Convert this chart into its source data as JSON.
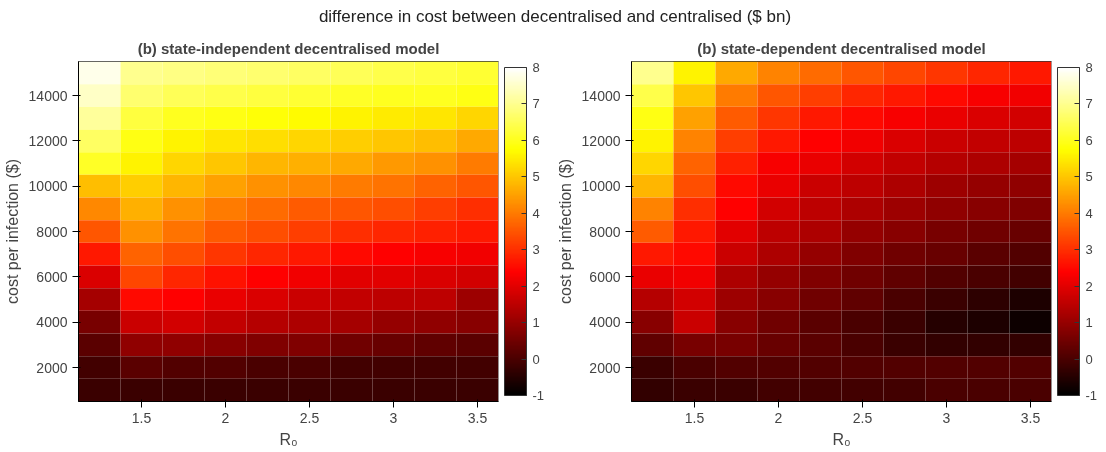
{
  "chart_data": [
    {
      "type": "heatmap",
      "title": "(b) state-independent decentralised model",
      "xlabel": "R₀",
      "ylabel": "cost per infection ($)",
      "annotations": [
        "difference in cost between decentralised and centralised ($ bn)"
      ],
      "x": [
        1.25,
        1.5,
        1.75,
        2,
        2.25,
        2.5,
        2.75,
        3,
        3.25,
        3.5
      ],
      "y": [
        15000,
        14000,
        13000,
        12000,
        11000,
        10000,
        9000,
        8000,
        7000,
        6000,
        5000,
        4000,
        3000,
        2000,
        1000
      ],
      "cells": [
        [
          7.8,
          7.0,
          6.9,
          6.8,
          6.7,
          6.6,
          6.5,
          6.4,
          6.3,
          6.2
        ],
        [
          7.5,
          6.7,
          6.5,
          6.4,
          6.3,
          6.2,
          6.1,
          6.0,
          6.0,
          5.9
        ],
        [
          7.1,
          6.3,
          6.0,
          5.9,
          5.8,
          5.7,
          5.6,
          5.5,
          5.4,
          5.2
        ],
        [
          6.6,
          5.9,
          5.6,
          5.4,
          5.3,
          5.2,
          5.1,
          5.0,
          4.9,
          4.6
        ],
        [
          6.1,
          5.6,
          5.2,
          5.0,
          4.8,
          4.7,
          4.6,
          4.4,
          4.3,
          4.0
        ],
        [
          4.9,
          5.1,
          4.8,
          4.5,
          4.3,
          4.2,
          4.0,
          3.9,
          3.7,
          3.5
        ],
        [
          4.2,
          4.7,
          4.3,
          4.0,
          3.8,
          3.6,
          3.5,
          3.4,
          3.2,
          3.0
        ],
        [
          3.5,
          4.3,
          3.9,
          3.6,
          3.4,
          3.2,
          3.0,
          2.9,
          2.8,
          2.7
        ],
        [
          2.7,
          3.7,
          3.4,
          3.1,
          2.9,
          2.7,
          2.5,
          2.4,
          2.3,
          2.2
        ],
        [
          1.9,
          3.3,
          2.9,
          2.6,
          2.4,
          2.2,
          2.0,
          2.0,
          1.9,
          1.8
        ],
        [
          1.2,
          2.5,
          2.4,
          2.1,
          1.9,
          1.7,
          1.6,
          1.5,
          1.5,
          1.1
        ],
        [
          0.6,
          1.7,
          1.8,
          1.6,
          1.4,
          1.3,
          1.2,
          1.0,
          0.9,
          0.8
        ],
        [
          0.2,
          0.9,
          0.9,
          0.8,
          0.7,
          0.7,
          0.5,
          0.4,
          0.3,
          0.2
        ],
        [
          -0.1,
          0.2,
          0.1,
          0.1,
          0.0,
          0.0,
          -0.1,
          -0.1,
          -0.1,
          -0.1
        ],
        [
          -0.2,
          -0.2,
          -0.2,
          -0.2,
          -0.2,
          -0.2,
          -0.2,
          -0.2,
          -0.2,
          -0.2
        ]
      ],
      "xlim": [
        1.125,
        3.625
      ],
      "xticks": [
        1.5,
        2,
        2.5,
        3,
        3.5
      ],
      "ylim": [
        500,
        15500
      ],
      "yticks": [
        2000,
        4000,
        6000,
        8000,
        10000,
        12000,
        14000
      ],
      "clim": [
        -1,
        8
      ],
      "cticks": [
        -1,
        0,
        1,
        2,
        3,
        4,
        5,
        6,
        7,
        8
      ]
    },
    {
      "type": "heatmap",
      "title": "(b) state-dependent decentralised model",
      "xlabel": "R₀",
      "ylabel": "cost per infection ($)",
      "x": [
        1.25,
        1.5,
        1.75,
        2,
        2.25,
        2.5,
        2.75,
        3,
        3.25,
        3.5
      ],
      "y": [
        15000,
        14000,
        13000,
        12000,
        11000,
        10000,
        9000,
        8000,
        7000,
        6000,
        5000,
        4000,
        3000,
        2000,
        1000
      ],
      "cells": [
        [
          7.0,
          5.6,
          4.6,
          4.1,
          3.8,
          3.5,
          3.3,
          3.1,
          2.9,
          2.7
        ],
        [
          6.4,
          5.0,
          4.0,
          3.5,
          3.2,
          2.9,
          2.7,
          2.5,
          2.3,
          2.2
        ],
        [
          5.9,
          4.5,
          3.6,
          3.1,
          2.7,
          2.5,
          2.3,
          2.1,
          1.9,
          1.8
        ],
        [
          5.6,
          4.1,
          3.2,
          2.7,
          2.4,
          2.2,
          1.9,
          1.7,
          1.6,
          1.5
        ],
        [
          5.2,
          3.7,
          2.8,
          2.3,
          2.1,
          1.8,
          1.6,
          1.4,
          1.3,
          1.2
        ],
        [
          4.8,
          3.4,
          2.5,
          2.1,
          1.7,
          1.5,
          1.3,
          1.1,
          1.0,
          0.9
        ],
        [
          4.1,
          3.0,
          2.4,
          1.8,
          1.5,
          1.3,
          1.1,
          0.9,
          0.8,
          0.7
        ],
        [
          3.6,
          2.7,
          2.0,
          1.5,
          1.3,
          1.0,
          0.8,
          0.6,
          0.5,
          0.4
        ],
        [
          2.7,
          2.5,
          1.7,
          1.3,
          1.0,
          0.7,
          0.5,
          0.4,
          0.2,
          0.1
        ],
        [
          2.1,
          2.2,
          1.3,
          1.0,
          0.7,
          0.5,
          0.3,
          0.1,
          0.0,
          -0.1
        ],
        [
          1.4,
          1.8,
          1.1,
          0.8,
          0.5,
          0.3,
          0.0,
          -0.2,
          -0.4,
          -0.6
        ],
        [
          0.8,
          1.7,
          0.8,
          0.5,
          0.2,
          0.0,
          -0.2,
          -0.5,
          -0.6,
          -0.8
        ],
        [
          0.3,
          0.6,
          0.6,
          0.4,
          0.2,
          0.0,
          -0.2,
          -0.3,
          -0.3,
          -0.3
        ],
        [
          -0.2,
          0.0,
          0.1,
          0.1,
          0.1,
          0.1,
          0.1,
          0.1,
          0.1,
          0.1
        ],
        [
          -0.3,
          -0.2,
          -0.2,
          -0.1,
          -0.1,
          -0.1,
          -0.1,
          0.0,
          0.0,
          0.0
        ]
      ],
      "xlim": [
        1.125,
        3.625
      ],
      "xticks": [
        1.5,
        2,
        2.5,
        3,
        3.5
      ],
      "ylim": [
        500,
        15500
      ],
      "yticks": [
        2000,
        4000,
        6000,
        8000,
        10000,
        12000,
        14000
      ],
      "clim": [
        -1,
        8
      ],
      "cticks": [
        -1,
        0,
        1,
        2,
        3,
        4,
        5,
        6,
        7,
        8
      ]
    }
  ]
}
